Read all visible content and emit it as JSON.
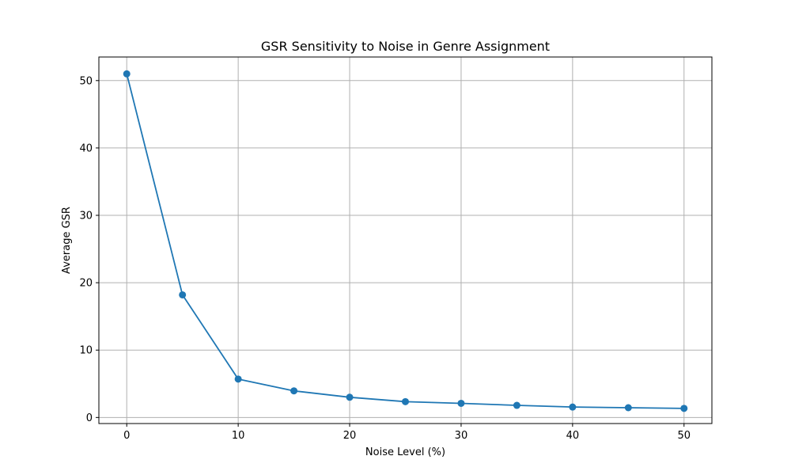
{
  "chart_data": {
    "type": "line",
    "title": "GSR Sensitivity to Noise in Genre Assignment",
    "xlabel": "Noise Level (%)",
    "ylabel": "Average GSR",
    "x": [
      0,
      5,
      10,
      15,
      20,
      25,
      30,
      35,
      40,
      45,
      50
    ],
    "series": [
      {
        "values": [
          51.0,
          18.2,
          5.7,
          3.95,
          3.0,
          2.35,
          2.1,
          1.8,
          1.55,
          1.45,
          1.35
        ],
        "color": "#1f77b4",
        "marker": "circle"
      }
    ],
    "xlim": [
      -2.5,
      52.5
    ],
    "ylim": [
      -0.9,
      53.5
    ],
    "xticks": [
      0,
      10,
      20,
      30,
      40,
      50
    ],
    "xtick_labels": [
      "0",
      "10",
      "20",
      "30",
      "40",
      "50"
    ],
    "yticks": [
      0,
      10,
      20,
      30,
      40,
      50
    ],
    "ytick_labels": [
      "0",
      "10",
      "20",
      "30",
      "40",
      "50"
    ],
    "grid": true,
    "grid_color": "#b0b0b0"
  }
}
